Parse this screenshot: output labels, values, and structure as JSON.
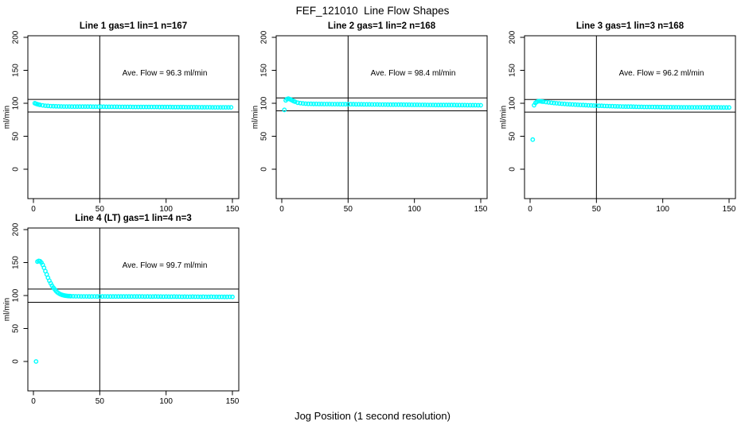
{
  "page": {
    "title": "FEF_121010  Line Flow Shapes",
    "xlabel": "Jog Position (1 second resolution)"
  },
  "colors": {
    "marker": "#00ffff",
    "axis": "#000000",
    "background": "#ffffff"
  },
  "chart_data": [
    {
      "type": "scatter",
      "title": "Line 1 gas=1 lin=1 n=167",
      "annotation": "Ave. Flow =  96.3  ml/min",
      "ave_flow_ml_min": 96.3,
      "gas": 1,
      "lin": 1,
      "n": 167,
      "ylabel": "ml/min",
      "xticks": [
        0,
        50,
        100,
        150
      ],
      "yticks": [
        0,
        50,
        100,
        150,
        200
      ],
      "vline_x": 50,
      "hlines_y": [
        105.9,
        86.7
      ],
      "marker": "open-circle",
      "x": [
        1,
        2,
        3,
        4,
        5,
        7,
        9,
        11,
        13,
        15,
        17,
        19,
        21,
        23,
        25,
        27,
        29,
        31,
        33,
        35,
        37,
        39,
        41,
        43,
        45,
        47,
        49,
        51,
        53,
        55,
        57,
        59,
        61,
        63,
        65,
        67,
        69,
        71,
        73,
        75,
        77,
        79,
        81,
        83,
        85,
        87,
        89,
        91,
        93,
        95,
        97,
        99,
        101,
        103,
        105,
        107,
        109,
        111,
        113,
        115,
        117,
        119,
        121,
        123,
        125,
        127,
        129,
        131,
        133,
        135,
        137,
        139,
        141,
        143,
        145,
        147,
        149
      ],
      "y": [
        100.1,
        99.3,
        98.6,
        98.1,
        97.6,
        96.9,
        96.3,
        96.0,
        95.7,
        95.5,
        95.4,
        95.3,
        95.2,
        95.1,
        95.1,
        95.1,
        95.0,
        95.0,
        95.0,
        94.9,
        94.9,
        94.9,
        94.9,
        94.9,
        94.8,
        94.8,
        94.8,
        94.8,
        94.8,
        94.7,
        94.7,
        94.7,
        94.7,
        94.7,
        94.6,
        94.6,
        94.6,
        94.6,
        94.6,
        94.5,
        94.5,
        94.5,
        94.5,
        94.5,
        94.4,
        94.4,
        94.4,
        94.4,
        94.4,
        94.3,
        94.3,
        94.3,
        94.3,
        94.3,
        94.2,
        94.2,
        94.2,
        94.2,
        94.2,
        94.1,
        94.1,
        94.1,
        94.1,
        94.1,
        94.0,
        94.0,
        94.0,
        94.0,
        94.0,
        93.9,
        93.9,
        93.9,
        93.9,
        93.9,
        93.8,
        93.8,
        93.8
      ]
    },
    {
      "type": "scatter",
      "title": "Line 2 gas=1 lin=2 n=168",
      "annotation": "Ave. Flow =  98.4  ml/min",
      "ave_flow_ml_min": 98.4,
      "gas": 1,
      "lin": 2,
      "n": 168,
      "ylabel": "ml/min",
      "xticks": [
        0,
        50,
        100,
        150
      ],
      "yticks": [
        0,
        50,
        100,
        150,
        200
      ],
      "vline_x": 50,
      "hlines_y": [
        108.2,
        88.6
      ],
      "marker": "open-circle",
      "x": [
        2,
        3,
        4,
        5,
        6,
        7,
        8,
        9,
        10,
        12,
        14,
        16,
        18,
        20,
        22,
        24,
        26,
        28,
        30,
        32,
        34,
        36,
        38,
        40,
        42,
        44,
        46,
        48,
        50,
        52,
        54,
        56,
        58,
        60,
        62,
        64,
        66,
        68,
        70,
        72,
        74,
        76,
        78,
        80,
        82,
        84,
        86,
        88,
        90,
        92,
        94,
        96,
        98,
        100,
        102,
        104,
        106,
        108,
        110,
        112,
        114,
        116,
        118,
        120,
        122,
        124,
        126,
        128,
        130,
        132,
        134,
        136,
        138,
        140,
        142,
        144,
        146,
        148,
        150
      ],
      "y": [
        90.0,
        104.5,
        106.5,
        107.0,
        106.3,
        105.3,
        104.3,
        103.3,
        102.4,
        100.9,
        100.2,
        99.7,
        99.4,
        99.2,
        99.1,
        99.0,
        99.0,
        98.9,
        98.9,
        98.8,
        98.8,
        98.8,
        98.7,
        98.7,
        98.7,
        98.6,
        98.6,
        98.6,
        98.5,
        98.5,
        98.5,
        98.4,
        98.4,
        98.4,
        98.3,
        98.3,
        98.3,
        98.2,
        98.2,
        98.2,
        98.1,
        98.1,
        98.1,
        98.0,
        98.0,
        98.0,
        97.9,
        97.9,
        97.9,
        97.8,
        97.8,
        97.8,
        97.7,
        97.7,
        97.7,
        97.6,
        97.6,
        97.6,
        97.5,
        97.5,
        97.5,
        97.4,
        97.4,
        97.4,
        97.4,
        97.3,
        97.3,
        97.3,
        97.3,
        97.2,
        97.2,
        97.2,
        97.2,
        97.1,
        97.1,
        97.1,
        97.1,
        97.0,
        97.0
      ]
    },
    {
      "type": "scatter",
      "title": "Line 3 gas=1 lin=3 n=168",
      "annotation": "Ave. Flow =  96.2  ml/min",
      "ave_flow_ml_min": 96.2,
      "gas": 1,
      "lin": 3,
      "n": 168,
      "ylabel": "ml/min",
      "xticks": [
        0,
        50,
        100,
        150
      ],
      "yticks": [
        0,
        50,
        100,
        150,
        200
      ],
      "vline_x": 50,
      "hlines_y": [
        105.8,
        86.6
      ],
      "marker": "open-circle",
      "x": [
        2,
        3,
        4,
        5,
        6,
        7,
        8,
        9,
        10,
        12,
        14,
        16,
        18,
        20,
        22,
        24,
        26,
        28,
        30,
        32,
        34,
        36,
        38,
        40,
        42,
        44,
        46,
        48,
        50,
        52,
        54,
        56,
        58,
        60,
        62,
        64,
        66,
        68,
        70,
        72,
        74,
        76,
        78,
        80,
        82,
        84,
        86,
        88,
        90,
        92,
        94,
        96,
        98,
        100,
        102,
        104,
        106,
        108,
        110,
        112,
        114,
        116,
        118,
        120,
        122,
        124,
        126,
        128,
        130,
        132,
        134,
        136,
        138,
        140,
        142,
        144,
        146,
        148,
        150
      ],
      "y": [
        45.0,
        97.0,
        100.5,
        102.0,
        103.0,
        103.2,
        103.0,
        102.7,
        102.4,
        101.8,
        101.3,
        100.8,
        100.4,
        100.0,
        99.6,
        99.3,
        99.0,
        98.7,
        98.4,
        98.2,
        97.9,
        97.7,
        97.5,
        97.3,
        97.1,
        96.9,
        96.7,
        96.5,
        96.4,
        96.2,
        96.1,
        95.9,
        95.8,
        95.7,
        95.5,
        95.4,
        95.3,
        95.2,
        95.1,
        95.0,
        94.9,
        94.9,
        94.8,
        94.7,
        94.6,
        94.6,
        94.5,
        94.5,
        94.4,
        94.4,
        94.3,
        94.3,
        94.2,
        94.2,
        94.1,
        94.1,
        94.1,
        94.0,
        94.0,
        94.0,
        93.9,
        93.9,
        93.9,
        93.9,
        93.8,
        93.8,
        93.8,
        93.8,
        93.8,
        93.7,
        93.7,
        93.7,
        93.7,
        93.7,
        93.7,
        93.6,
        93.6,
        93.6,
        93.6
      ]
    },
    {
      "type": "scatter",
      "title": "Line 4 (LT) gas=1 lin=4 n=3",
      "annotation": "Ave. Flow =  99.7  ml/min",
      "ave_flow_ml_min": 99.7,
      "gas": 1,
      "lin": 4,
      "n": 3,
      "ylabel": "ml/min",
      "xticks": [
        0,
        50,
        100,
        150
      ],
      "yticks": [
        0,
        50,
        100,
        150,
        200
      ],
      "vline_x": 50,
      "hlines_y": [
        109.7,
        89.7
      ],
      "marker": "open-circle",
      "x": [
        2,
        3,
        4,
        5,
        6,
        7,
        8,
        9,
        10,
        11,
        12,
        13,
        14,
        15,
        16,
        17,
        18,
        19,
        20,
        21,
        22,
        23,
        24,
        25,
        26,
        27,
        28,
        30,
        32,
        34,
        36,
        38,
        40,
        42,
        44,
        46,
        48,
        50,
        52,
        54,
        56,
        58,
        60,
        62,
        64,
        66,
        68,
        70,
        72,
        74,
        76,
        78,
        80,
        82,
        84,
        86,
        88,
        90,
        92,
        94,
        96,
        98,
        100,
        102,
        104,
        106,
        108,
        110,
        112,
        114,
        116,
        118,
        120,
        122,
        124,
        126,
        128,
        130,
        132,
        134,
        136,
        138,
        140,
        142,
        144,
        146,
        148,
        150
      ],
      "y": [
        0.0,
        151.5,
        152.5,
        152.0,
        150.0,
        146.5,
        142.0,
        137.0,
        132.0,
        127.0,
        122.5,
        118.5,
        115.0,
        112.0,
        109.5,
        107.0,
        105.0,
        103.5,
        102.3,
        101.4,
        100.7,
        100.2,
        99.8,
        99.5,
        99.3,
        99.1,
        99.0,
        98.9,
        98.8,
        98.8,
        98.7,
        98.7,
        98.7,
        98.6,
        98.6,
        98.7,
        98.6,
        98.6,
        98.6,
        98.7,
        98.6,
        98.6,
        98.6,
        98.5,
        98.6,
        98.6,
        98.5,
        98.6,
        98.5,
        98.5,
        98.6,
        98.5,
        98.5,
        98.5,
        98.4,
        98.5,
        98.4,
        98.4,
        98.5,
        98.4,
        98.4,
        98.3,
        98.4,
        98.3,
        98.3,
        98.4,
        98.3,
        98.3,
        98.2,
        98.3,
        98.2,
        98.2,
        98.3,
        98.2,
        98.2,
        98.1,
        98.2,
        98.1,
        98.1,
        98.2,
        98.1,
        98.1,
        98.0,
        98.1,
        98.0,
        98.0,
        98.1,
        98.0
      ]
    }
  ]
}
